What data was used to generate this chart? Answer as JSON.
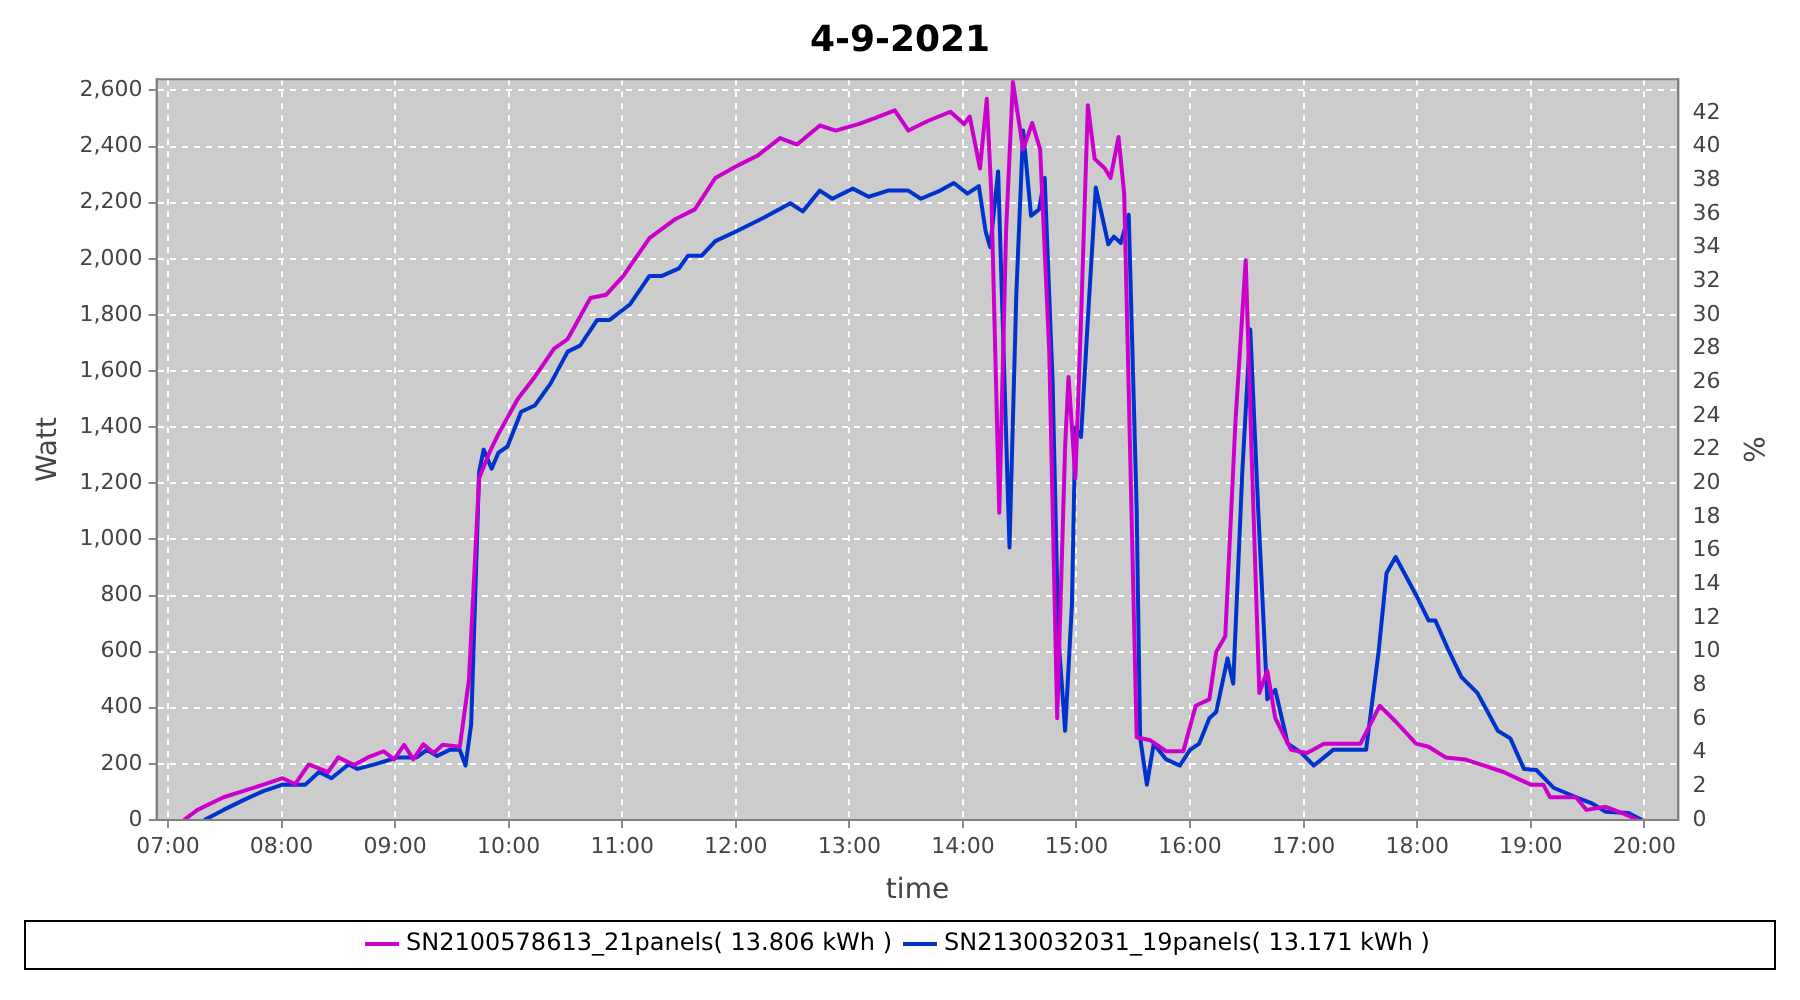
{
  "chart_data": {
    "type": "line",
    "title": "4-9-2021",
    "xlabel": "time",
    "ylabel": "Watt",
    "y2label": "%",
    "xlim": [
      6.9,
      20.3
    ],
    "xticks": [
      {
        "value": 7,
        "label": "07:00"
      },
      {
        "value": 8,
        "label": "08:00"
      },
      {
        "value": 9,
        "label": "09:00"
      },
      {
        "value": 10,
        "label": "10:00"
      },
      {
        "value": 11,
        "label": "11:00"
      },
      {
        "value": 12,
        "label": "12:00"
      },
      {
        "value": 13,
        "label": "13:00"
      },
      {
        "value": 14,
        "label": "14:00"
      },
      {
        "value": 15,
        "label": "15:00"
      },
      {
        "value": 16,
        "label": "16:00"
      },
      {
        "value": 17,
        "label": "17:00"
      },
      {
        "value": 18,
        "label": "18:00"
      },
      {
        "value": 19,
        "label": "19:00"
      },
      {
        "value": 20,
        "label": "20:00"
      }
    ],
    "ylim": [
      0,
      2640
    ],
    "yticks": [
      0,
      200,
      400,
      600,
      800,
      {
        "value": 1000,
        "label": "1,000"
      },
      {
        "value": 1200,
        "label": "1,200"
      },
      {
        "value": 1400,
        "label": "1,400"
      },
      {
        "value": 1600,
        "label": "1,600"
      },
      {
        "value": 1800,
        "label": "1,800"
      },
      {
        "value": 2000,
        "label": "2,000"
      },
      {
        "value": 2200,
        "label": "2,200"
      },
      {
        "value": 2400,
        "label": "2,400"
      },
      {
        "value": 2600,
        "label": "2,600"
      }
    ],
    "y2lim": [
      0,
      44
    ],
    "y2ticks": [
      0,
      2,
      4,
      6,
      8,
      10,
      12,
      14,
      16,
      18,
      20,
      22,
      24,
      26,
      28,
      30,
      32,
      34,
      36,
      38,
      40,
      42
    ],
    "grid": true,
    "legend": "bottom",
    "marker": "none",
    "line_style": "solid",
    "series": [
      {
        "name": "SN2100578613_21panels( 13.806 kWh )",
        "color": "#cc00cc",
        "x": [
          7.14,
          7.26,
          7.49,
          7.84,
          8.01,
          8.12,
          8.24,
          8.41,
          8.5,
          8.64,
          8.76,
          8.9,
          8.99,
          9.08,
          9.16,
          9.25,
          9.34,
          9.42,
          9.57,
          9.65,
          9.74,
          9.83,
          9.91,
          10.08,
          10.23,
          10.4,
          10.52,
          10.72,
          10.86,
          11.01,
          11.24,
          11.47,
          11.64,
          11.82,
          12.02,
          12.19,
          12.39,
          12.54,
          12.74,
          12.88,
          13.08,
          13.23,
          13.4,
          13.52,
          13.69,
          13.89,
          14.01,
          14.06,
          14.15,
          14.21,
          14.25,
          14.32,
          14.38,
          14.44,
          14.53,
          14.61,
          14.68,
          14.76,
          14.83,
          14.9,
          14.93,
          14.99,
          15.04,
          15.1,
          15.16,
          15.25,
          15.3,
          15.37,
          15.42,
          15.53,
          15.65,
          15.79,
          15.94,
          16.05,
          16.17,
          16.23,
          16.31,
          16.4,
          16.49,
          16.54,
          16.61,
          16.68,
          16.75,
          16.89,
          17.03,
          17.18,
          17.5,
          17.67,
          17.81,
          17.99,
          18.1,
          18.25,
          18.42,
          18.59,
          18.76,
          19.0,
          19.11,
          19.17,
          19.4,
          19.49,
          19.66,
          19.8,
          19.95
        ],
        "values": [
          0,
          36,
          81,
          126,
          149,
          128,
          198,
          171,
          223,
          196,
          223,
          245,
          216,
          268,
          216,
          270,
          239,
          268,
          261,
          498,
          1218,
          1309,
          1376,
          1500,
          1579,
          1680,
          1714,
          1860,
          1872,
          1939,
          2074,
          2142,
          2176,
          2288,
          2333,
          2367,
          2430,
          2407,
          2475,
          2457,
          2480,
          2502,
          2529,
          2457,
          2491,
          2524,
          2480,
          2507,
          2322,
          2570,
          2232,
          1095,
          2097,
          2630,
          2390,
          2484,
          2390,
          1669,
          363,
          1331,
          1579,
          1218,
          1782,
          2547,
          2356,
          2322,
          2288,
          2434,
          2232,
          295,
          284,
          245,
          245,
          407,
          430,
          599,
          655,
          1421,
          1995,
          1331,
          453,
          532,
          363,
          250,
          239,
          272,
          272,
          407,
          351,
          272,
          261,
          223,
          216,
          194,
          171,
          126,
          126,
          81,
          81,
          36,
          47,
          25,
          0
        ]
      },
      {
        "name": "SN2130032031_19panels( 13.171 kWh )",
        "color": "#0033cc",
        "x": [
          7.32,
          7.49,
          7.66,
          7.84,
          8.01,
          8.21,
          8.33,
          8.44,
          8.59,
          8.67,
          8.82,
          9.02,
          9.19,
          9.28,
          9.37,
          9.48,
          9.57,
          9.62,
          9.67,
          9.74,
          9.78,
          9.85,
          9.91,
          9.99,
          10.11,
          10.23,
          10.37,
          10.52,
          10.63,
          10.78,
          10.89,
          11.07,
          11.24,
          11.35,
          11.5,
          11.58,
          11.7,
          11.82,
          12.02,
          12.25,
          12.48,
          12.59,
          12.74,
          12.85,
          13.03,
          13.17,
          13.34,
          13.52,
          13.63,
          13.8,
          13.92,
          14.04,
          14.14,
          14.2,
          14.24,
          14.31,
          14.35,
          14.41,
          14.47,
          14.53,
          14.6,
          14.67,
          14.72,
          14.79,
          14.84,
          14.9,
          14.96,
          14.99,
          15.04,
          15.1,
          15.17,
          15.28,
          15.33,
          15.39,
          15.46,
          15.53,
          15.56,
          15.62,
          15.68,
          15.79,
          15.91,
          16.0,
          16.08,
          16.17,
          16.23,
          16.33,
          16.38,
          16.46,
          16.53,
          16.6,
          16.68,
          16.75,
          16.86,
          16.98,
          17.09,
          17.26,
          17.55,
          17.66,
          17.73,
          17.81,
          17.99,
          18.1,
          18.16,
          18.27,
          18.39,
          18.53,
          18.71,
          18.82,
          18.94,
          19.05,
          19.2,
          19.4,
          19.54,
          19.66,
          19.86,
          19.98
        ],
        "values": [
          0,
          36,
          70,
          103,
          126,
          126,
          171,
          149,
          198,
          182,
          198,
          223,
          223,
          250,
          228,
          250,
          250,
          194,
          340,
          1241,
          1320,
          1252,
          1309,
          1331,
          1455,
          1477,
          1556,
          1669,
          1691,
          1782,
          1782,
          1838,
          1939,
          1939,
          1966,
          2011,
          2011,
          2063,
          2101,
          2147,
          2198,
          2169,
          2243,
          2214,
          2250,
          2221,
          2243,
          2243,
          2214,
          2243,
          2270,
          2232,
          2259,
          2097,
          2041,
          2311,
          1782,
          971,
          1872,
          2457,
          2153,
          2176,
          2288,
          1556,
          655,
          318,
          768,
          1399,
          1365,
          1782,
          2254,
          2052,
          2079,
          2056,
          2157,
          1106,
          295,
          126,
          272,
          216,
          194,
          250,
          272,
          363,
          385,
          576,
          486,
          1241,
          1748,
          1106,
          430,
          464,
          272,
          239,
          194,
          250,
          250,
          599,
          880,
          937,
          802,
          711,
          711,
          610,
          509,
          453,
          318,
          291,
          182,
          178,
          115,
          81,
          59,
          29,
          25,
          0
        ]
      }
    ]
  }
}
